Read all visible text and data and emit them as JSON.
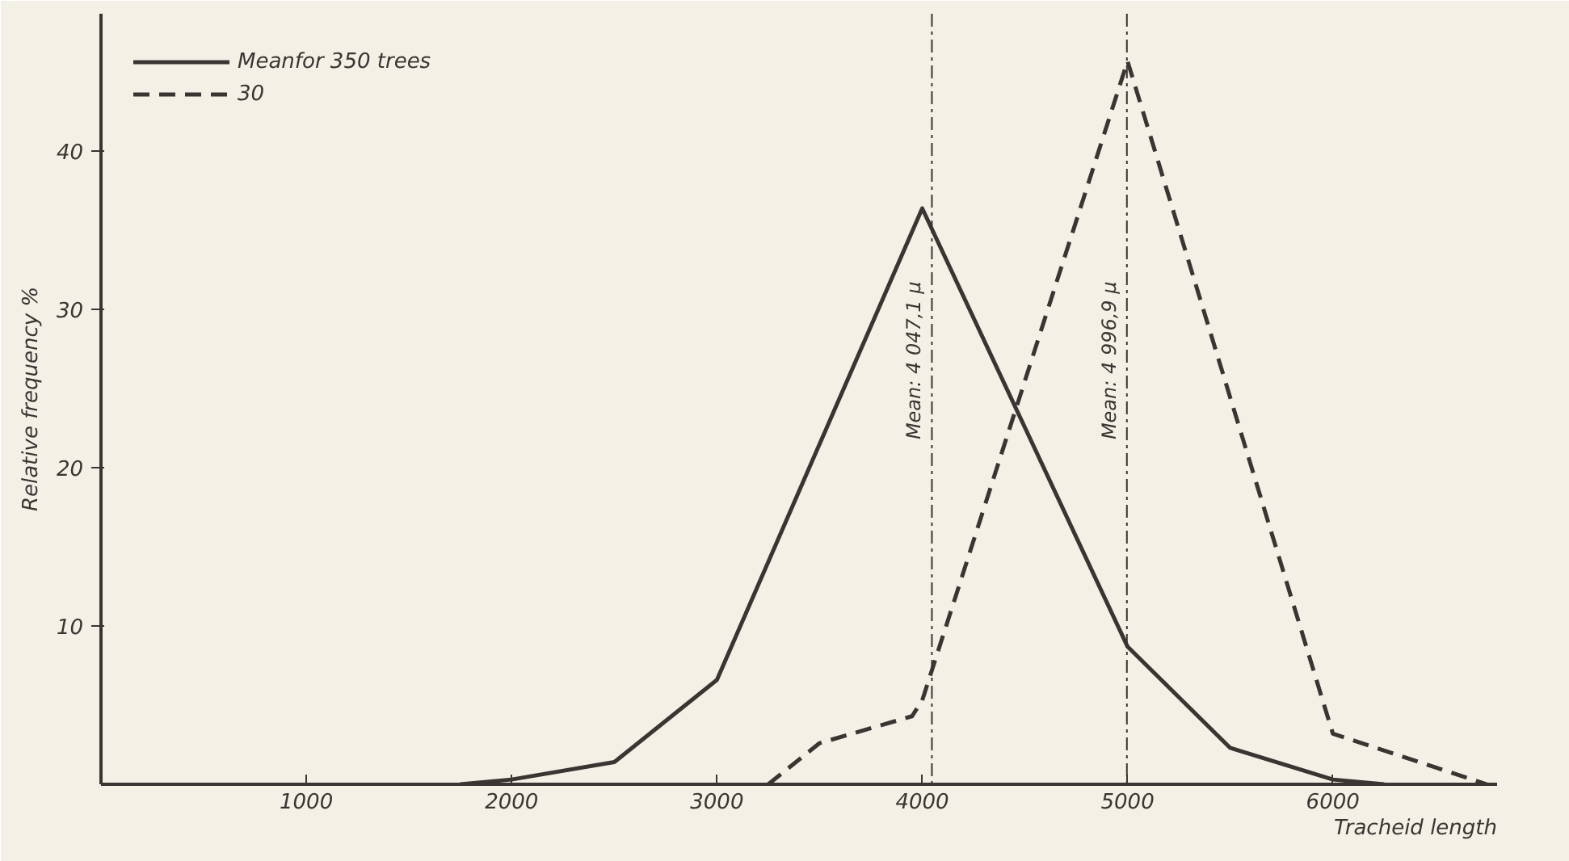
{
  "chart_data": {
    "type": "line",
    "xlabel": "Tracheid length",
    "ylabel": "Relative frequency %",
    "xlim": [
      0,
      6800
    ],
    "ylim": [
      0,
      48.7
    ],
    "xticks": [
      1000,
      2000,
      3000,
      4000,
      5000,
      6000
    ],
    "yticks": [
      10,
      20,
      30,
      40
    ],
    "grid": false,
    "legend": "top left",
    "marker": "none",
    "series": [
      {
        "name": "Meanfor 350 trees",
        "color": "#3a3532",
        "line_style": "solid",
        "x": [
          1750,
          2000,
          2500,
          3000,
          4000,
          5000,
          5500,
          6000,
          6250
        ],
        "values": [
          0,
          0.3,
          1.4,
          6.6,
          36.4,
          8.7,
          2.3,
          0.3,
          0
        ]
      },
      {
        "name": "30",
        "color": "#3a3532",
        "line_style": "dashed",
        "x": [
          3250,
          3500,
          3950,
          4000,
          5000,
          6000,
          6750
        ],
        "values": [
          0,
          2.6,
          4.3,
          5.3,
          45.7,
          3.2,
          0
        ]
      }
    ],
    "ref_lines": [
      {
        "axis": "x",
        "value": 4047.1,
        "label": "Mean: 4 047,1 μ",
        "color": "#3a3532",
        "line_style": "dashdot"
      },
      {
        "axis": "x",
        "value": 4996.9,
        "label": "Mean: 4 996,9 μ",
        "color": "#3a3532",
        "line_style": "dashdot"
      }
    ]
  }
}
